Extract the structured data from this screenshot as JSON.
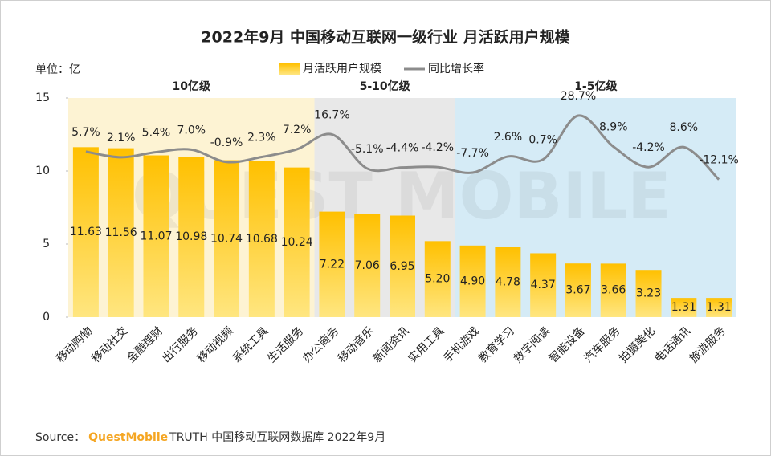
{
  "chart_data": {
    "type": "bar",
    "title": "2022年9月 中国移动互联网一级行业 月活跃用户规模",
    "unit_label": "单位：亿",
    "categories": [
      "移动购物",
      "移动社交",
      "金融理财",
      "出行服务",
      "移动视频",
      "系统工具",
      "生活服务",
      "办公商务",
      "移动音乐",
      "新闻资讯",
      "实用工具",
      "手机游戏",
      "教育学习",
      "数字阅读",
      "智能设备",
      "汽车服务",
      "拍摄美化",
      "电话通讯",
      "旅游服务"
    ],
    "series": [
      {
        "name": "月活跃用户规模",
        "type": "bar",
        "color": "#ffc000",
        "values": [
          11.63,
          11.56,
          11.07,
          10.98,
          10.74,
          10.68,
          10.24,
          7.22,
          7.06,
          6.95,
          5.2,
          4.9,
          4.78,
          4.37,
          3.67,
          3.66,
          3.23,
          1.31,
          1.31
        ],
        "value_labels": [
          "11.63",
          "11.56",
          "11.07",
          "10.98",
          "10.74",
          "10.68",
          "10.24",
          "7.22",
          "7.06",
          "6.95",
          "5.20",
          "4.90",
          "4.78",
          "4.37",
          "3.67",
          "3.66",
          "3.23",
          "1.31",
          "1.31"
        ]
      },
      {
        "name": "同比增长率",
        "type": "line",
        "axis": "y2",
        "color": "#8c8c8c",
        "values": [
          5.7,
          2.1,
          5.4,
          7.0,
          -0.9,
          2.3,
          7.2,
          16.7,
          -5.1,
          -4.4,
          -4.2,
          -7.7,
          2.6,
          0.7,
          28.7,
          8.9,
          -4.2,
          8.6,
          -12.1
        ],
        "value_labels": [
          "5.7%",
          "2.1%",
          "5.4%",
          "7.0%",
          "-0.9%",
          "2.3%",
          "7.2%",
          "16.7%",
          "-5.1%",
          "-4.4%",
          "-4.2%",
          "-7.7%",
          "2.6%",
          "0.7%",
          "28.7%",
          "8.9%",
          "-4.2%",
          "8.6%",
          "-12.1%"
        ]
      }
    ],
    "ylim": [
      0,
      15
    ],
    "yticks": [
      0,
      5,
      10,
      15
    ],
    "y2lim": [
      -100,
      40
    ],
    "bands": [
      {
        "label": "10亿级",
        "from": "移动购物",
        "to": "生活服务",
        "color": "#fdf3d3"
      },
      {
        "label": "5-10亿级",
        "from": "办公商务",
        "to": "实用工具",
        "color": "#e8e8e8"
      },
      {
        "label": "1-5亿级",
        "from": "手机游戏",
        "to": "旅游服务",
        "color": "#d5ebf6"
      }
    ],
    "watermark": "QUEST MOBILE",
    "source": {
      "prefix": "Source：",
      "brand": "QuestMobile",
      "text": "TRUTH 中国移动互联网数据库 2022年9月"
    }
  }
}
